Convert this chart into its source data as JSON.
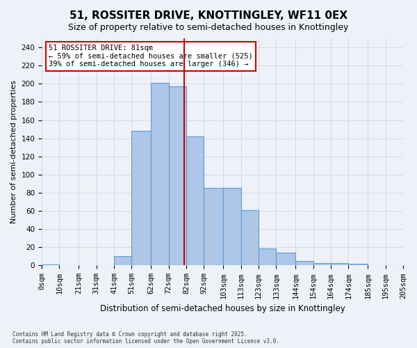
{
  "title": "51, ROSSITER DRIVE, KNOTTINGLEY, WF11 0EX",
  "subtitle": "Size of property relative to semi-detached houses in Knottingley",
  "xlabel": "Distribution of semi-detached houses by size in Knottingley",
  "ylabel": "Number of semi-detached properties",
  "footer_line1": "Contains HM Land Registry data © Crown copyright and database right 2025.",
  "footer_line2": "Contains public sector information licensed under the Open Government Licence v3.0.",
  "annotation_title": "51 ROSSITER DRIVE: 81sqm",
  "annotation_line1": "← 59% of semi-detached houses are smaller (525)",
  "annotation_line2": "39% of semi-detached houses are larger (346) →",
  "property_size": 81,
  "bar_edges": [
    0,
    10,
    21,
    31,
    41,
    51,
    62,
    72,
    82,
    92,
    103,
    113,
    123,
    133,
    144,
    154,
    164,
    174,
    185,
    195,
    205
  ],
  "bar_labels": [
    "0sqm",
    "10sqm",
    "21sqm",
    "31sqm",
    "41sqm",
    "51sqm",
    "62sqm",
    "72sqm",
    "82sqm",
    "92sqm",
    "103sqm",
    "113sqm",
    "123sqm",
    "133sqm",
    "144sqm",
    "154sqm",
    "164sqm",
    "174sqm",
    "185sqm",
    "195sqm",
    "205sqm"
  ],
  "bar_heights": [
    1,
    0,
    0,
    0,
    10,
    148,
    201,
    197,
    142,
    85,
    85,
    61,
    19,
    14,
    5,
    3,
    3,
    2,
    0,
    0
  ],
  "bar_color": "#aec6e8",
  "bar_edge_color": "#5b9bd5",
  "grid_color": "#d0d8e8",
  "vline_color": "#cc0000",
  "vline_x": 81,
  "annotation_box_color": "#cc0000",
  "ylim": [
    0,
    250
  ],
  "yticks": [
    0,
    20,
    40,
    60,
    80,
    100,
    120,
    140,
    160,
    180,
    200,
    220,
    240
  ],
  "bg_color": "#eef2f8",
  "title_fontsize": 11,
  "subtitle_fontsize": 9,
  "axis_label_fontsize": 8,
  "tick_fontsize": 7.5
}
